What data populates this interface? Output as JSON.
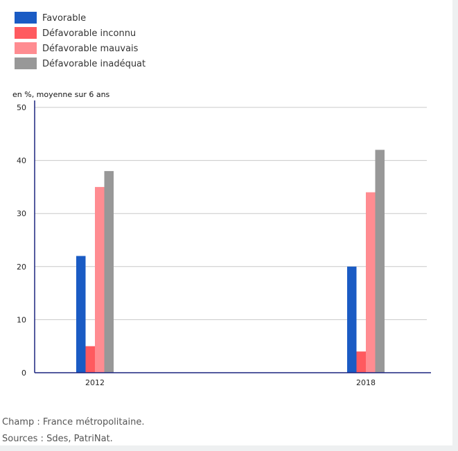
{
  "chart_data": {
    "type": "bar",
    "categories": [
      "2012",
      "2018"
    ],
    "series": [
      {
        "name": "Favorable",
        "color": "#1a5bc4",
        "values": [
          22,
          20
        ]
      },
      {
        "name": "Défavorable inconnu",
        "color": "#ff5a5f",
        "values": [
          5,
          4
        ]
      },
      {
        "name": "Défavorable mauvais",
        "color": "#ff8c91",
        "values": [
          35,
          34
        ]
      },
      {
        "name": "Défavorable inadéquat",
        "color": "#989898",
        "values": [
          38,
          42
        ]
      }
    ],
    "ylabel": "en %, moyenne sur 6 ans",
    "ylim": [
      0,
      50
    ],
    "yticks": [
      0,
      10,
      20,
      30,
      40,
      50
    ],
    "grid": true,
    "legend_position": "top-left"
  },
  "notes": {
    "champ": "Champ : France métropolitaine.",
    "sources": "Sources : Sdes, PatriNat."
  }
}
